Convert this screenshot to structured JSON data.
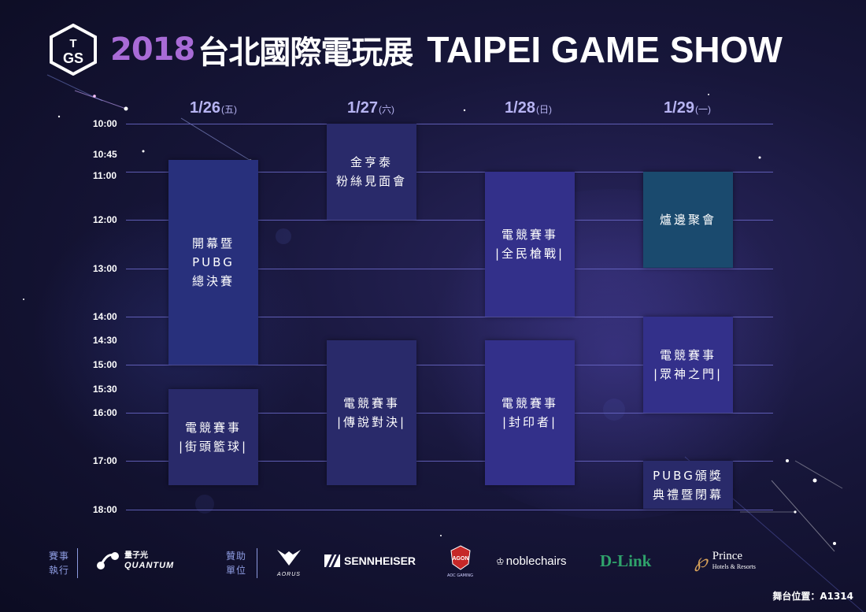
{
  "header": {
    "logo_text": "TGS",
    "title_year": "2018",
    "title_cn": "台北國際電玩展",
    "title_en": "TAIPEI GAME SHOW"
  },
  "days": [
    {
      "date": "1/26",
      "weekday": "(五)"
    },
    {
      "date": "1/27",
      "weekday": "(六)"
    },
    {
      "date": "1/28",
      "weekday": "(日)"
    },
    {
      "date": "1/29",
      "weekday": "(一)"
    }
  ],
  "time_labels": [
    "10:00",
    "10:45",
    "11:00",
    "12:00",
    "13:00",
    "14:00",
    "14:30",
    "15:00",
    "15:30",
    "16:00",
    "17:00",
    "18:00"
  ],
  "events": [
    {
      "day": 0,
      "start": "10:45",
      "end": "15:00",
      "text": "開幕暨\nPUBG\n總決賽"
    },
    {
      "day": 0,
      "start": "15:30",
      "end": "17:30",
      "text": "電競賽事\n|街頭籃球|"
    },
    {
      "day": 1,
      "start": "10:00",
      "end": "12:00",
      "text": "金亨泰\n粉絲見面會"
    },
    {
      "day": 1,
      "start": "14:30",
      "end": "17:30",
      "text": "電競賽事\n|傳說對決|"
    },
    {
      "day": 2,
      "start": "11:00",
      "end": "14:00",
      "text": "電競賽事\n|全民槍戰|"
    },
    {
      "day": 2,
      "start": "14:30",
      "end": "17:30",
      "text": "電競賽事\n|封印者|"
    },
    {
      "day": 3,
      "start": "11:00",
      "end": "13:00",
      "text": "爐邊聚會"
    },
    {
      "day": 3,
      "start": "14:00",
      "end": "16:00",
      "text": "電競賽事\n|眾神之門|"
    },
    {
      "day": 3,
      "start": "17:00",
      "end": "18:00",
      "text": "PUBG頒獎\n典禮暨閉幕"
    }
  ],
  "colors": {
    "event_blue": "#28307c",
    "event_violet": "#33308a",
    "event_teal": "#1a4a6e",
    "accent_purple": "#a86bd6",
    "gridline": "#6b69c8"
  },
  "footer": {
    "organizer_label": "賽事\n執行",
    "organizer_name_cn": "量子光",
    "organizer_name_en": "QUANTUM",
    "sponsor_label": "贊助\n單位",
    "sponsors": [
      "AORUS",
      "SENNHEISER",
      "AGON",
      "noblechairs",
      "D-Link",
      "Prince"
    ],
    "agon_sub": "AOC GAMING",
    "prince_sub": "Hotels & Resorts",
    "booth": "舞台位置：A1314"
  }
}
